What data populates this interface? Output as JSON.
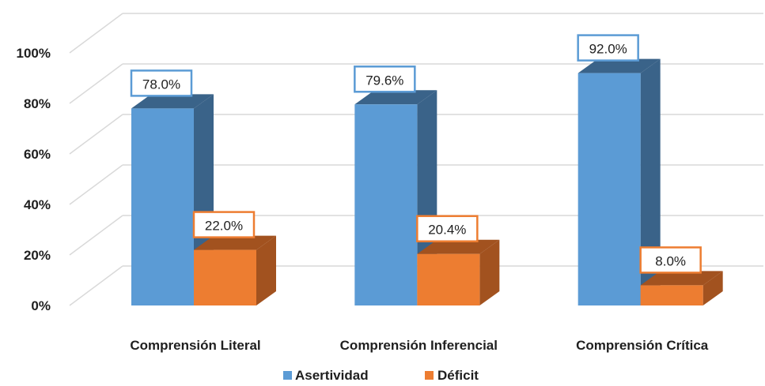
{
  "chart_data": {
    "type": "bar",
    "categories": [
      "Comprensión Literal",
      "Comprensión Inferencial",
      "Comprensión Crítica"
    ],
    "series": [
      {
        "name": "Asertividad",
        "values": [
          78.0,
          79.6,
          92.0
        ],
        "color": "#5b9bd5",
        "dark": "#3a6389",
        "labels": [
          "78.0%",
          "79.6%",
          "92.0%"
        ]
      },
      {
        "name": "Déficit",
        "values": [
          22.0,
          20.4,
          8.0
        ],
        "color": "#ed7d31",
        "dark": "#a2521f",
        "labels": [
          "22.0%",
          "20.4%",
          "8.0%"
        ]
      }
    ],
    "yticks": [
      "0%",
      "20%",
      "40%",
      "60%",
      "80%",
      "100%"
    ],
    "ylim": [
      0,
      100
    ],
    "legend": "bottom",
    "grid": true,
    "style": "3d-clustered-column"
  }
}
